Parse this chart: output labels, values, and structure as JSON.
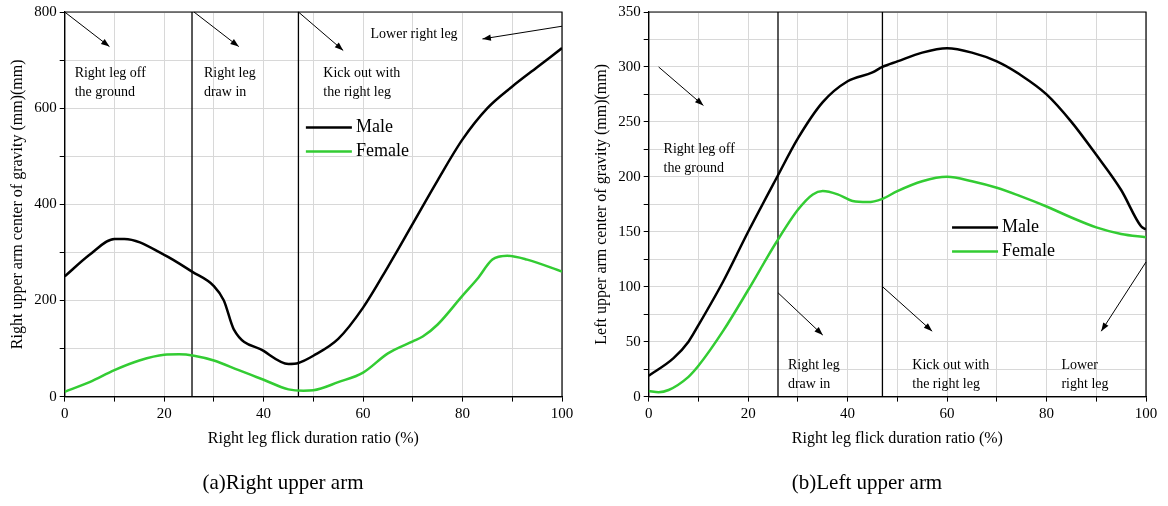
{
  "chart_data": [
    {
      "type": "line",
      "title": "(a)Right upper arm",
      "xlabel": "Right leg flick duration ratio (%)",
      "ylabel": "Right upper arm center of gravity (mm)(mm)",
      "xlim": [
        0,
        100
      ],
      "xticks": [
        0,
        {
          "value": 10,
          "label": null
        },
        20,
        {
          "value": 30,
          "label": null
        },
        40,
        {
          "value": 50,
          "label": null
        },
        60,
        {
          "value": 70,
          "label": null
        },
        80,
        {
          "value": 90,
          "label": null
        },
        100
      ],
      "ylim": [
        0,
        800
      ],
      "yticks": [
        0,
        {
          "value": 100,
          "label": null
        },
        200,
        {
          "value": 300,
          "label": null
        },
        400,
        {
          "value": 500,
          "label": null
        },
        600,
        {
          "value": 700,
          "label": null
        },
        800
      ],
      "grid": true,
      "legend": "top right",
      "marker": "none",
      "line_style": "solid",
      "series": [
        {
          "name": "Male",
          "color": "#000000",
          "x": [
            0,
            5,
            10,
            12,
            20,
            25.6,
            30,
            32,
            34,
            40,
            45,
            47,
            50,
            55,
            60,
            65,
            70,
            75,
            80,
            85,
            90,
            95,
            100
          ],
          "values": [
            250,
            295,
            328,
            328,
            295,
            260,
            230,
            200,
            140,
            95,
            68,
            70,
            85,
            120,
            185,
            270,
            360,
            450,
            535,
            600,
            645,
            685,
            725
          ]
        },
        {
          "name": "Female",
          "color": "#33cc33",
          "x": [
            0,
            5,
            10,
            15,
            20,
            23,
            26,
            30,
            35,
            40,
            45,
            48,
            50,
            55,
            60,
            65,
            70,
            72,
            75,
            80,
            83,
            86,
            89,
            93,
            100
          ],
          "values": [
            10,
            30,
            55,
            75,
            87,
            88,
            85,
            75,
            55,
            35,
            15,
            12,
            13,
            30,
            50,
            90,
            115,
            125,
            150,
            210,
            245,
            285,
            293,
            285,
            260
          ]
        }
      ],
      "ref_lines": [
        {
          "axis": "x",
          "value": 25.6,
          "color": "#000000"
        },
        {
          "axis": "x",
          "value": 47,
          "color": "#000000"
        }
      ],
      "annotations": [
        "Right leg off\nthe ground",
        "Right leg\ndraw in",
        "Kick out with\nthe right leg",
        "Lower right leg"
      ]
    },
    {
      "type": "line",
      "title": "(b)Left upper arm",
      "xlabel": "Right leg flick duration ratio (%)",
      "ylabel": "Left upper arm center of gravity (mm)(mm)",
      "xlim": [
        0,
        100
      ],
      "xticks": [
        0,
        {
          "value": 10,
          "label": null
        },
        20,
        {
          "value": 30,
          "label": null
        },
        40,
        {
          "value": 50,
          "label": null
        },
        60,
        {
          "value": 70,
          "label": null
        },
        80,
        {
          "value": 90,
          "label": null
        },
        100
      ],
      "ylim": [
        0,
        350
      ],
      "yticks": [
        0,
        {
          "value": 25,
          "label": null
        },
        50,
        {
          "value": 75,
          "label": null
        },
        100,
        {
          "value": 125,
          "label": null
        },
        150,
        {
          "value": 175,
          "label": null
        },
        200,
        {
          "value": 225,
          "label": null
        },
        250,
        {
          "value": 275,
          "label": null
        },
        300,
        {
          "value": 325,
          "label": null
        },
        350
      ],
      "grid": true,
      "legend": "right",
      "marker": "none",
      "line_style": "solid",
      "series": [
        {
          "name": "Male",
          "color": "#000000",
          "x": [
            0,
            5,
            8,
            10,
            15,
            20,
            25.6,
            30,
            35,
            40,
            45,
            47,
            50,
            55,
            60,
            65,
            70,
            75,
            80,
            85,
            90,
            95,
            99,
            100
          ],
          "values": [
            19,
            35,
            50,
            65,
            105,
            150,
            198,
            235,
            268,
            287,
            295,
            300,
            305,
            313,
            317,
            313,
            305,
            292,
            275,
            250,
            220,
            188,
            155,
            152
          ]
        },
        {
          "name": "Female",
          "color": "#33cc33",
          "x": [
            0,
            2,
            4,
            8,
            10,
            15,
            20,
            25.6,
            30,
            33,
            35,
            38,
            41,
            44,
            47,
            50,
            55,
            60,
            65,
            70,
            75,
            80,
            85,
            90,
            95,
            100
          ],
          "values": [
            5,
            4,
            6,
            18,
            28,
            60,
            97,
            140,
            170,
            184,
            187,
            184,
            178,
            177,
            180,
            187,
            196,
            200,
            196,
            190,
            182,
            173,
            163,
            154,
            148,
            145
          ]
        }
      ],
      "ref_lines": [
        {
          "axis": "x",
          "value": 26,
          "color": "#000000"
        },
        {
          "axis": "x",
          "value": 47,
          "color": "#000000"
        }
      ],
      "annotations": [
        "Right leg off\nthe ground",
        "Right leg\ndraw in",
        "Kick out with\nthe right leg",
        "Lower\nright leg"
      ]
    }
  ]
}
